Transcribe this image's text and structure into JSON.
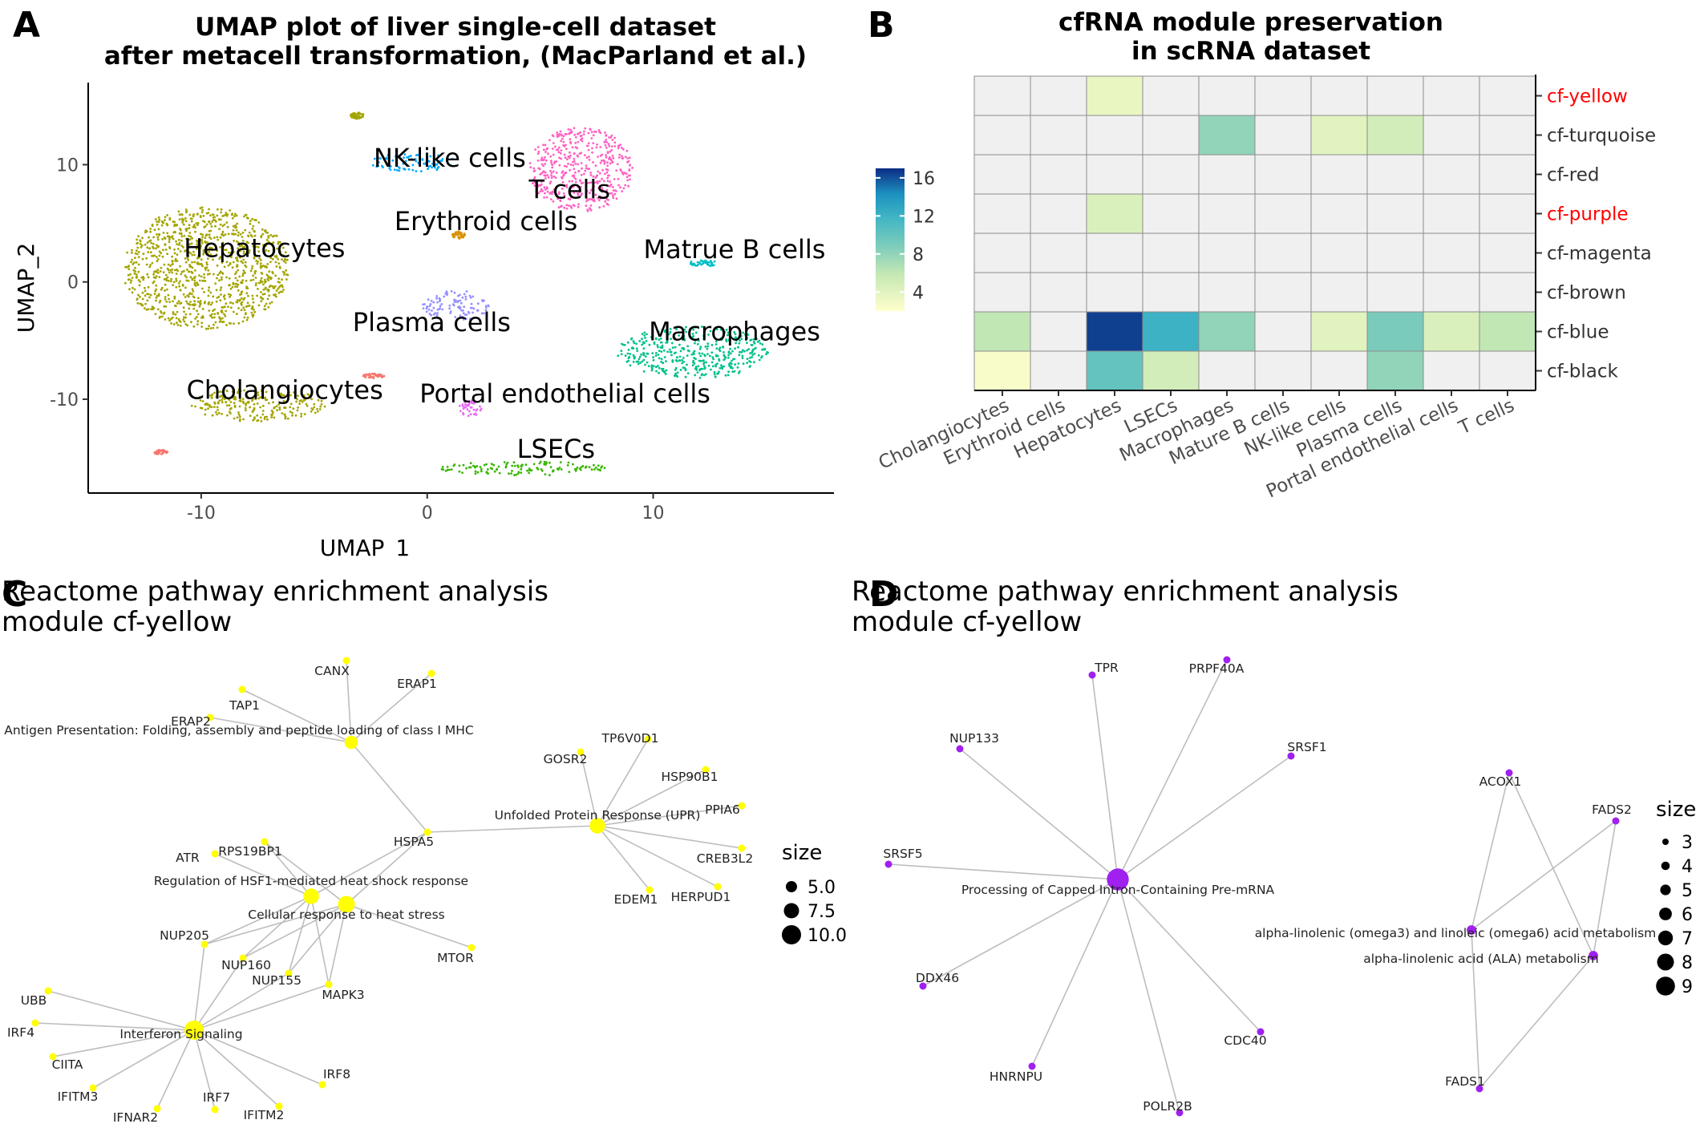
{
  "panel_labels": {
    "a": "A",
    "b": "B",
    "c": "C",
    "d": "D"
  },
  "chart_data": [
    {
      "type": "scatter",
      "title": "UMAP plot of liver single-cell dataset",
      "subtitle": "after metacell transformation, (MacParland et al.)",
      "xlabel": "UMAP_1",
      "ylabel": "UMAP_2",
      "xlim": [
        -15,
        18
      ],
      "ylim": [
        -18,
        17
      ],
      "xticks": [
        "-10",
        "0",
        "10"
      ],
      "yticks": [
        "10",
        "0",
        "-10"
      ],
      "clusters": [
        {
          "name": "Hepatocytes",
          "color": "#a3a500",
          "center": [
            -9.8,
            1.2
          ],
          "spread": [
            3.7,
            5.2
          ],
          "label_at": [
            -7.2,
            2.8
          ]
        },
        {
          "name": "NK-like cells",
          "color": "#00a9ff",
          "center": [
            -0.6,
            10.2
          ],
          "spread": [
            1.9,
            0.8
          ],
          "label_at": [
            1.0,
            10.5
          ]
        },
        {
          "name": "T cells",
          "color": "#ff61c3",
          "center": [
            6.8,
            9.6
          ],
          "spread": [
            2.3,
            3.6
          ],
          "label_at": [
            6.3,
            7.8
          ]
        },
        {
          "name": "Erythroid cells",
          "color": "#d89000",
          "center": [
            1.4,
            4.0
          ],
          "spread": [
            0.3,
            0.3
          ],
          "label_at": [
            2.6,
            5.1
          ]
        },
        {
          "name": "Matrue B cells",
          "color": "#00bfc4",
          "center": [
            12.2,
            1.6
          ],
          "spread": [
            0.6,
            0.3
          ],
          "label_at": [
            13.6,
            2.7
          ]
        },
        {
          "name": "Plasma cells",
          "color": "#9590ff",
          "center": [
            1.3,
            -2.0
          ],
          "spread": [
            1.5,
            1.3
          ],
          "label_at": [
            0.2,
            -3.5
          ]
        },
        {
          "name": "Macrophages",
          "color": "#00c08b",
          "center": [
            11.8,
            -6.0
          ],
          "spread": [
            3.4,
            2.2
          ],
          "label_at": [
            13.6,
            -4.3
          ]
        },
        {
          "name": "Cholangiocytes",
          "color": "#a3a500",
          "center": [
            -7.5,
            -10.5
          ],
          "spread": [
            3.0,
            1.4
          ],
          "label_at": [
            -6.3,
            -9.3
          ]
        },
        {
          "name": "Portal endothelial cells",
          "color": "#e76bf3",
          "center": [
            1.9,
            -10.8
          ],
          "spread": [
            0.5,
            0.7
          ],
          "label_at": [
            6.1,
            -9.6
          ]
        },
        {
          "name": "LSECs",
          "color": "#39b600",
          "center": [
            4.3,
            -15.9
          ],
          "spread": [
            3.8,
            0.6
          ],
          "label_at": [
            5.7,
            -14.3
          ]
        },
        {
          "name": "",
          "color": "#a3a500",
          "center": [
            -3.1,
            14.2
          ],
          "spread": [
            0.3,
            0.3
          ],
          "label_at": null
        },
        {
          "name": "",
          "color": "#f8766d",
          "center": [
            -2.4,
            -8.0
          ],
          "spread": [
            0.5,
            0.2
          ],
          "label_at": null
        },
        {
          "name": "",
          "color": "#f8766d",
          "center": [
            -11.8,
            -14.5
          ],
          "spread": [
            0.3,
            0.2
          ],
          "label_at": null
        }
      ]
    },
    {
      "type": "heatmap",
      "title": "cfRNA module preservation",
      "subtitle": "in scRNA dataset",
      "columns": [
        "Cholangiocytes",
        "Erythroid cells",
        "Hepatocytes",
        "LSECs",
        "Macrophages",
        "Mature B cells",
        "NK-like cells",
        "Plasma cells",
        "Portal endothelial cells",
        "T cells"
      ],
      "rows": [
        {
          "name": "cf-yellow",
          "highlight": true,
          "values": [
            null,
            null,
            3.5,
            null,
            null,
            null,
            null,
            null,
            null,
            null
          ]
        },
        {
          "name": "cf-turquoise",
          "highlight": false,
          "values": [
            null,
            null,
            null,
            null,
            8,
            null,
            4,
            5,
            null,
            null
          ]
        },
        {
          "name": "cf-red",
          "highlight": false,
          "values": [
            null,
            null,
            null,
            null,
            null,
            null,
            null,
            null,
            null,
            null
          ]
        },
        {
          "name": "cf-purple",
          "highlight": true,
          "values": [
            null,
            null,
            4.5,
            null,
            null,
            null,
            null,
            null,
            null,
            null
          ]
        },
        {
          "name": "cf-magenta",
          "highlight": false,
          "values": [
            null,
            null,
            null,
            null,
            null,
            null,
            null,
            null,
            null,
            null
          ]
        },
        {
          "name": "cf-brown",
          "highlight": false,
          "values": [
            null,
            null,
            null,
            null,
            null,
            null,
            null,
            null,
            null,
            null
          ]
        },
        {
          "name": "cf-blue",
          "highlight": false,
          "values": [
            6,
            null,
            16.5,
            12,
            8,
            null,
            4,
            9,
            4.5,
            6
          ]
        },
        {
          "name": "cf-black",
          "highlight": false,
          "values": [
            2.5,
            null,
            10,
            5,
            null,
            null,
            null,
            8,
            null,
            null
          ]
        }
      ],
      "legend": {
        "ticks": [
          "16",
          "12",
          "8",
          "4"
        ],
        "min": 2,
        "max": 17
      },
      "colors": {
        "na": "#f0f0f0",
        "highlight_text": "#ff0000"
      }
    },
    {
      "type": "network",
      "title": "Reactome pathway enrichment analysis",
      "subtitle": "module cf-yellow",
      "node_color": "#ffff00",
      "legend": {
        "title": "size",
        "items": [
          "5.0",
          "7.5",
          "10.0"
        ]
      },
      "pathways": [
        {
          "id": "ag",
          "label": "Antigen Presentation: Folding, assembly and peptide loading of class I MHC",
          "size": 7
        },
        {
          "id": "upr",
          "label": "Unfolded Protein Response (UPR)",
          "size": 9
        },
        {
          "id": "hsf",
          "label": "Regulation of HSF1-mediated heat shock response",
          "size": 9
        },
        {
          "id": "chs",
          "label": "Cellular response to heat stress",
          "size": 10
        },
        {
          "id": "ifn",
          "label": "Interferon Signaling",
          "size": 12
        }
      ],
      "genes": [
        "CANX",
        "TAP1",
        "ERAP1",
        "ERAP2",
        "TP6V0D1",
        "GOSR2",
        "HSP90B1",
        "PPIA6",
        "CREB3L2",
        "HERPUD1",
        "EDEM1",
        "HSPA5",
        "RPS19BP1",
        "ATR",
        "NUP205",
        "NUP160",
        "NUP155",
        "MAPK3",
        "MTOR",
        "UBB",
        "IRF4",
        "CIITA",
        "IFITM3",
        "IFNAR2",
        "IRF7",
        "IFITM2",
        "IRF8"
      ],
      "edges": [
        [
          "ag",
          "CANX"
        ],
        [
          "ag",
          "TAP1"
        ],
        [
          "ag",
          "ERAP1"
        ],
        [
          "ag",
          "ERAP2"
        ],
        [
          "ag",
          "HSPA5"
        ],
        [
          "upr",
          "TP6V0D1"
        ],
        [
          "upr",
          "GOSR2"
        ],
        [
          "upr",
          "HSP90B1"
        ],
        [
          "upr",
          "PPIA6"
        ],
        [
          "upr",
          "CREB3L2"
        ],
        [
          "upr",
          "HERPUD1"
        ],
        [
          "upr",
          "EDEM1"
        ],
        [
          "upr",
          "HSPA5"
        ],
        [
          "hsf",
          "HSPA5"
        ],
        [
          "hsf",
          "RPS19BP1"
        ],
        [
          "hsf",
          "ATR"
        ],
        [
          "hsf",
          "NUP205"
        ],
        [
          "hsf",
          "NUP160"
        ],
        [
          "hsf",
          "NUP155"
        ],
        [
          "hsf",
          "MAPK3"
        ],
        [
          "chs",
          "HSPA5"
        ],
        [
          "chs",
          "RPS19BP1"
        ],
        [
          "chs",
          "NUP205"
        ],
        [
          "chs",
          "NUP160"
        ],
        [
          "chs",
          "NUP155"
        ],
        [
          "chs",
          "MTOR"
        ],
        [
          "chs",
          "MAPK3"
        ],
        [
          "ifn",
          "NUP205"
        ],
        [
          "ifn",
          "NUP160"
        ],
        [
          "ifn",
          "NUP155"
        ],
        [
          "ifn",
          "MAPK3"
        ],
        [
          "ifn",
          "UBB"
        ],
        [
          "ifn",
          "IRF4"
        ],
        [
          "ifn",
          "CIITA"
        ],
        [
          "ifn",
          "IFITM3"
        ],
        [
          "ifn",
          "IFNAR2"
        ],
        [
          "ifn",
          "IRF7"
        ],
        [
          "ifn",
          "IFITM2"
        ],
        [
          "ifn",
          "IRF8"
        ]
      ]
    },
    {
      "type": "network",
      "title": "Reactome pathway enrichment analysis",
      "subtitle": "module cf-yellow",
      "node_color": "#a020f0",
      "legend": {
        "title": "size",
        "items": [
          "3",
          "4",
          "5",
          "6",
          "7",
          "8",
          "9"
        ]
      },
      "pathways": [
        {
          "id": "cap",
          "label": "Processing of Capped Intron-Containing Pre-mRNA",
          "size": 9
        },
        {
          "id": "omega",
          "label": "alpha-linolenic (omega3) and linoleic (omega6) acid metabolism",
          "size": 3
        },
        {
          "id": "ala",
          "label": "alpha-linolenic acid (ALA) metabolism",
          "size": 3
        }
      ],
      "genes": [
        "TPR",
        "PRPF40A",
        "NUP133",
        "SRSF1",
        "SRSF5",
        "DDX46",
        "HNRNPU",
        "POLR2B",
        "CDC40",
        "ACOX1",
        "FADS2",
        "FADS1"
      ],
      "edges": [
        [
          "cap",
          "TPR"
        ],
        [
          "cap",
          "PRPF40A"
        ],
        [
          "cap",
          "NUP133"
        ],
        [
          "cap",
          "SRSF1"
        ],
        [
          "cap",
          "SRSF5"
        ],
        [
          "cap",
          "DDX46"
        ],
        [
          "cap",
          "HNRNPU"
        ],
        [
          "cap",
          "POLR2B"
        ],
        [
          "cap",
          "CDC40"
        ],
        [
          "omega",
          "ACOX1"
        ],
        [
          "omega",
          "FADS2"
        ],
        [
          "omega",
          "FADS1"
        ],
        [
          "ala",
          "ACOX1"
        ],
        [
          "ala",
          "FADS2"
        ],
        [
          "ala",
          "FADS1"
        ]
      ]
    }
  ]
}
